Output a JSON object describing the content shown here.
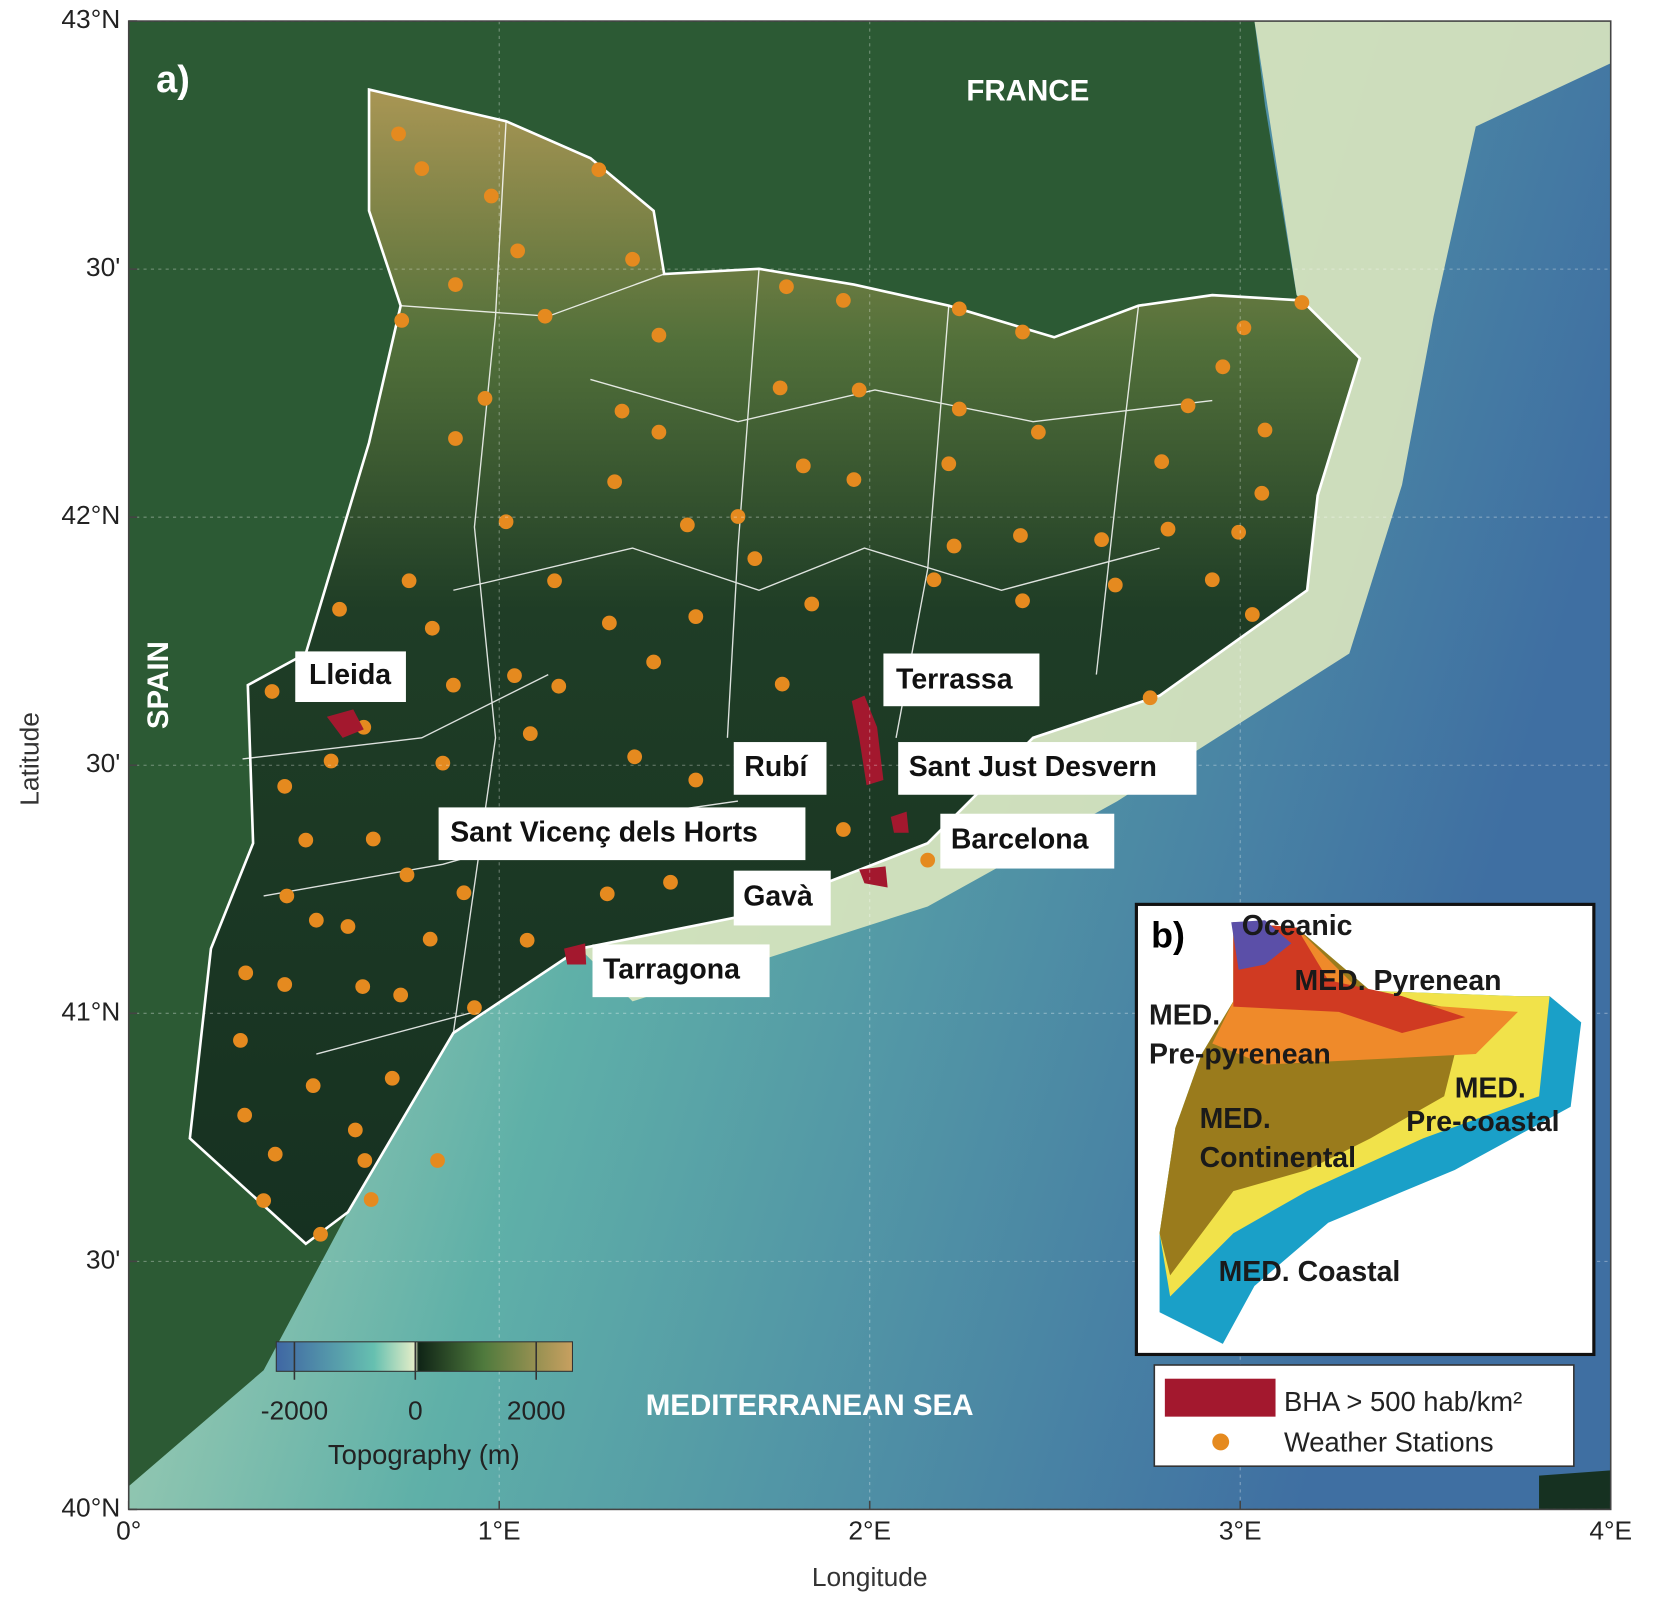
{
  "panel_a": {
    "label": "a)",
    "country_labels": [
      "FRANCE",
      "SPAIN"
    ],
    "sea_label": "MEDITERRANEAN SEA",
    "cities": [
      "Lleida",
      "Terrassa",
      "Rubí",
      "Sant Just Desvern",
      "Sant Vicenç dels Horts",
      "Barcelona",
      "Gavà",
      "Tarragona"
    ]
  },
  "axes": {
    "xlabel": "Longitude",
    "ylabel": "Latitude",
    "lonlim": [
      0,
      4
    ],
    "latlim": [
      40,
      43
    ],
    "lon_ticks": [
      {
        "value": 0,
        "label": "0°"
      },
      {
        "value": 1,
        "label": "1°E"
      },
      {
        "value": 2,
        "label": "2°E"
      },
      {
        "value": 3,
        "label": "3°E"
      },
      {
        "value": 4,
        "label": "4°E"
      }
    ],
    "lat_ticks": [
      {
        "value": 40,
        "label": "40°N"
      },
      {
        "value": 40.5,
        "label": "30'"
      },
      {
        "value": 41,
        "label": "41°N"
      },
      {
        "value": 41.5,
        "label": "30'"
      },
      {
        "value": 42,
        "label": "42°N"
      },
      {
        "value": 42.5,
        "label": "30'"
      },
      {
        "value": 43,
        "label": "43°N"
      }
    ]
  },
  "colorbar": {
    "title": "Topography (m)",
    "lim": [
      -2300,
      2600
    ],
    "ticks": [
      -2000,
      0,
      2000
    ]
  },
  "panel_b": {
    "label": "b)",
    "regions": [
      "Oceanic",
      "MED. Pyrenean",
      "MED.",
      "Pre-pyrenean",
      "MED.",
      "Pre-coastal",
      "MED.",
      "Continental",
      "MED. Coastal"
    ]
  },
  "legend": {
    "items": [
      "BHA > 500 hab/km²",
      "Weather Stations"
    ]
  }
}
